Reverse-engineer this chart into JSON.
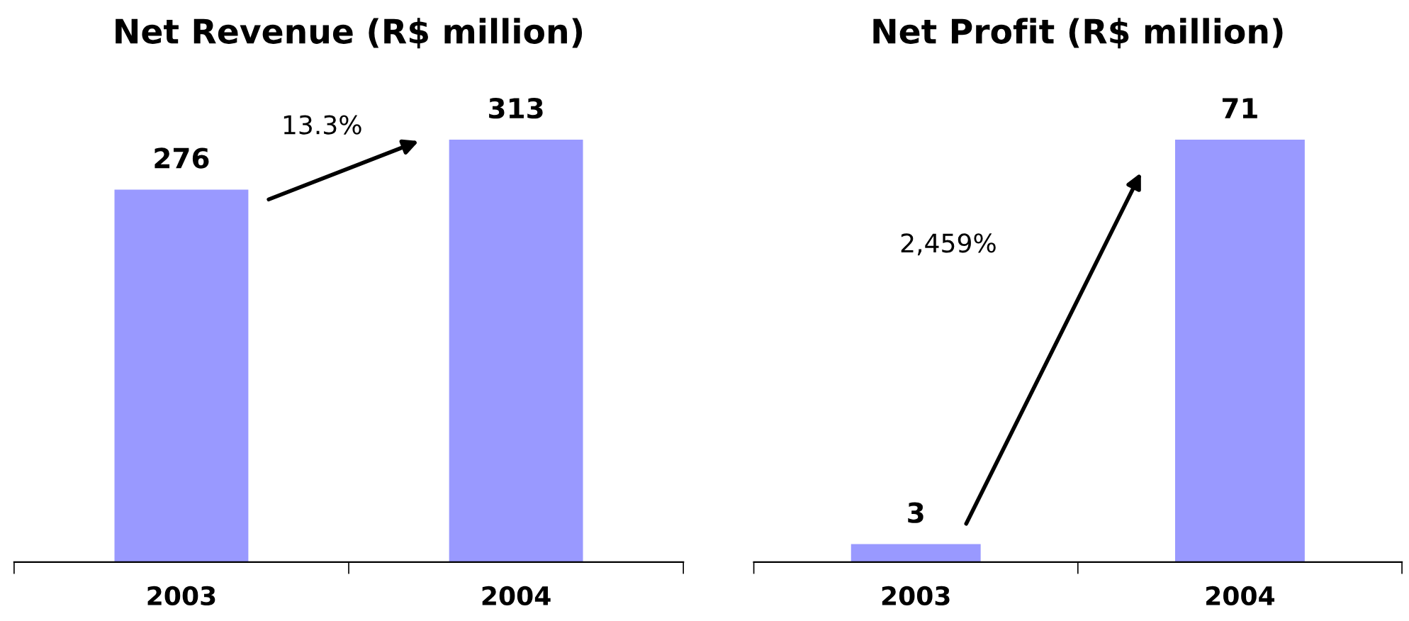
{
  "chart_data": [
    {
      "type": "bar",
      "title": "Net Revenue (R$ million)",
      "categories": [
        "2003",
        "2004"
      ],
      "values": [
        276,
        313
      ],
      "color": "#9999ff",
      "data_labels": true,
      "grid": false,
      "annotations": [
        "13.3%"
      ]
    },
    {
      "type": "bar",
      "title": "Net Profit (R$ million)",
      "categories": [
        "2003",
        "2004"
      ],
      "values": [
        3,
        71
      ],
      "color": "#9999ff",
      "data_labels": true,
      "grid": false,
      "annotations": [
        "2,459%"
      ]
    }
  ]
}
